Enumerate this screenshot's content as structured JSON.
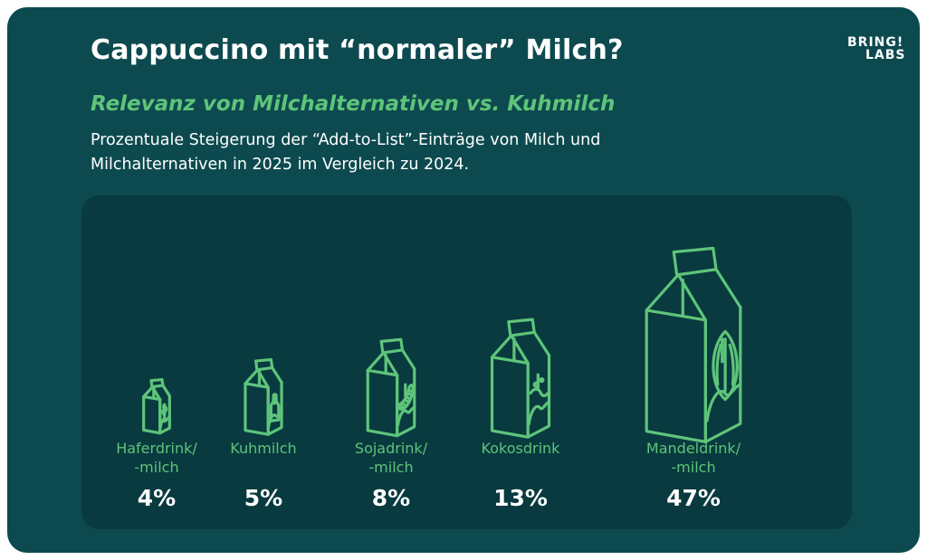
{
  "title": "Cappuccino mit “normaler” Milch?",
  "logo": {
    "line1": "BRING!",
    "line2": "LABS"
  },
  "subtitle": "Relevanz von Milchalternativen vs. Kuhmilch",
  "description": "Prozentuale Steigerung der “Add-to-List”-Einträge von Milch und Milchalternativen in 2025 im Vergleich zu 2024.",
  "colors": {
    "background": "#0d4a4f",
    "panel": "#083a3f",
    "accent": "#5ec47a",
    "text": "#ffffff"
  },
  "chart_data": {
    "type": "bar",
    "categories": [
      "Haferdrink/\n-milch",
      "Kuhmilch",
      "Sojadrink/\n-milch",
      "Kokosdrink",
      "Mandeldrink/\n-milch"
    ],
    "values": [
      4,
      5,
      8,
      13,
      47
    ],
    "value_labels": [
      "4%",
      "5%",
      "8%",
      "13%",
      "47%"
    ],
    "icons": [
      "oat-icon",
      "cow-milk-bottle-icon",
      "soybean-icon",
      "coconut-icon",
      "almond-icon"
    ],
    "unit": "%"
  }
}
